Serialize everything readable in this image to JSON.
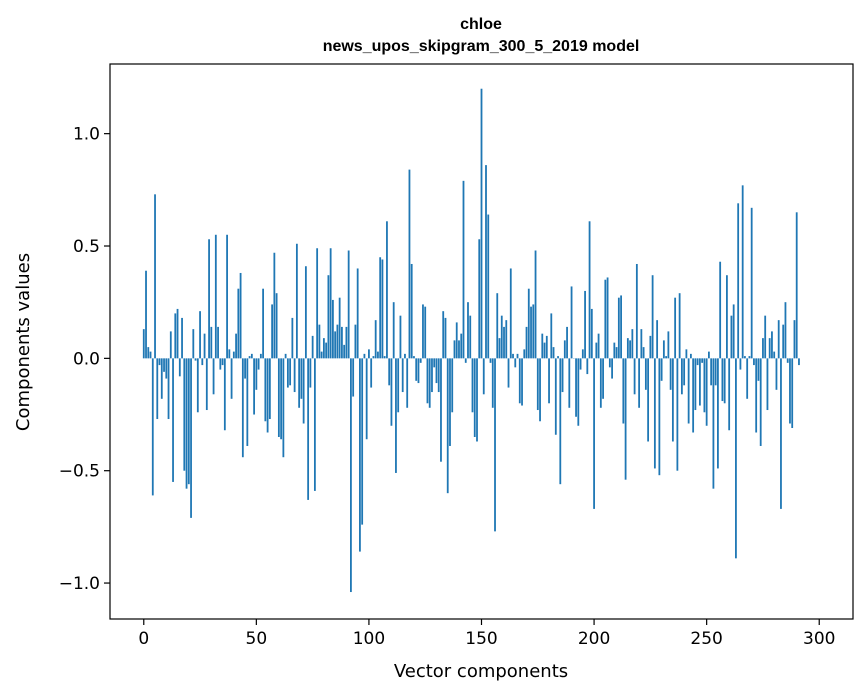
{
  "chart_data": {
    "type": "bar",
    "title_line1": "chloe",
    "title_line2": "news_upos_skipgram_300_5_2019 model",
    "xlabel": "Vector components",
    "ylabel": "Components values",
    "xlim": [
      -15,
      315
    ],
    "ylim": [
      -1.16,
      1.31
    ],
    "x_ticks": [
      0,
      50,
      100,
      150,
      200,
      250,
      300
    ],
    "x_tick_labels": [
      "0",
      "50",
      "100",
      "150",
      "200",
      "250",
      "300"
    ],
    "y_ticks": [
      -1.0,
      -0.5,
      0.0,
      0.5,
      1.0
    ],
    "y_tick_labels": [
      "−1.0",
      "−0.5",
      "0.0",
      "0.5",
      "1.0"
    ],
    "bar_color": "#1f77b4",
    "values": [
      0.13,
      0.39,
      0.05,
      0.03,
      -0.61,
      0.73,
      -0.27,
      -0.03,
      -0.18,
      -0.06,
      -0.09,
      -0.27,
      0.12,
      -0.55,
      0.2,
      0.22,
      -0.08,
      0.18,
      -0.5,
      -0.58,
      -0.56,
      -0.71,
      0.13,
      -0.01,
      -0.24,
      0.21,
      -0.03,
      0.11,
      -0.23,
      0.53,
      0.14,
      -0.16,
      0.55,
      0.14,
      -0.05,
      -0.03,
      -0.32,
      0.55,
      0.04,
      -0.18,
      0.03,
      0.11,
      0.31,
      0.38,
      -0.44,
      -0.09,
      -0.39,
      0.01,
      0.02,
      -0.25,
      -0.14,
      -0.05,
      0.02,
      0.31,
      -0.28,
      -0.33,
      -0.27,
      0.24,
      0.47,
      0.29,
      -0.35,
      -0.36,
      -0.44,
      0.02,
      -0.13,
      -0.12,
      0.18,
      -0.15,
      0.51,
      -0.22,
      -0.18,
      -0.29,
      0.41,
      -0.63,
      -0.13,
      0.1,
      -0.59,
      0.49,
      0.15,
      0.03,
      0.09,
      0.07,
      0.37,
      0.49,
      0.26,
      0.12,
      0.15,
      0.27,
      0.14,
      0.06,
      0.14,
      0.48,
      -1.04,
      -0.17,
      0.15,
      0.4,
      -0.86,
      -0.74,
      0.02,
      -0.36,
      0.04,
      -0.13,
      0.01,
      0.17,
      0.03,
      0.45,
      0.44,
      0.01,
      0.61,
      -0.12,
      -0.3,
      0.25,
      -0.51,
      -0.24,
      0.19,
      -0.15,
      0.02,
      -0.22,
      0.84,
      0.42,
      0.01,
      -0.1,
      -0.11,
      -0.02,
      0.24,
      0.23,
      -0.2,
      -0.22,
      -0.15,
      -0.04,
      -0.11,
      -0.15,
      -0.46,
      0.21,
      0.18,
      -0.6,
      -0.39,
      -0.24,
      0.08,
      0.16,
      0.08,
      0.11,
      0.79,
      -0.02,
      0.25,
      0.19,
      -0.24,
      -0.35,
      -0.37,
      0.53,
      1.2,
      -0.16,
      0.86,
      0.64,
      -0.02,
      -0.22,
      -0.77,
      0.29,
      0.09,
      0.19,
      0.14,
      0.17,
      -0.13,
      0.4,
      0.02,
      -0.04,
      0.02,
      -0.2,
      -0.21,
      0.04,
      0.14,
      0.31,
      0.23,
      0.24,
      0.48,
      -0.23,
      -0.28,
      0.11,
      0.07,
      0.1,
      -0.2,
      0.2,
      0.05,
      -0.34,
      0.01,
      -0.56,
      -0.15,
      0.08,
      0.14,
      -0.22,
      0.32,
      0.0,
      -0.26,
      -0.3,
      -0.05,
      0.04,
      0.3,
      -0.07,
      0.61,
      0.22,
      -0.67,
      0.07,
      0.11,
      -0.22,
      -0.18,
      0.35,
      0.36,
      -0.04,
      -0.09,
      0.07,
      0.05,
      0.27,
      0.28,
      -0.29,
      -0.54,
      0.09,
      0.08,
      0.13,
      -0.16,
      0.42,
      -0.22,
      0.13,
      0.05,
      -0.14,
      -0.37,
      0.1,
      0.37,
      -0.49,
      0.17,
      -0.52,
      -0.1,
      0.08,
      0.01,
      0.12,
      -0.14,
      -0.37,
      0.27,
      -0.5,
      0.29,
      -0.16,
      -0.12,
      0.04,
      -0.29,
      0.02,
      -0.33,
      -0.23,
      -0.03,
      -0.21,
      -0.02,
      -0.24,
      -0.3,
      0.03,
      -0.12,
      -0.58,
      -0.12,
      -0.49,
      0.43,
      -0.19,
      -0.2,
      0.37,
      -0.32,
      0.19,
      0.24,
      -0.89,
      0.69,
      -0.05,
      0.77,
      0.01,
      -0.18,
      0.01,
      0.67,
      -0.03,
      -0.33,
      -0.1,
      -0.39,
      0.09,
      0.19,
      -0.23,
      0.09,
      0.12,
      0.03,
      -0.14,
      0.17,
      -0.67,
      0.15,
      0.25,
      -0.02,
      -0.29,
      -0.31,
      0.17,
      0.65,
      -0.03
    ]
  }
}
